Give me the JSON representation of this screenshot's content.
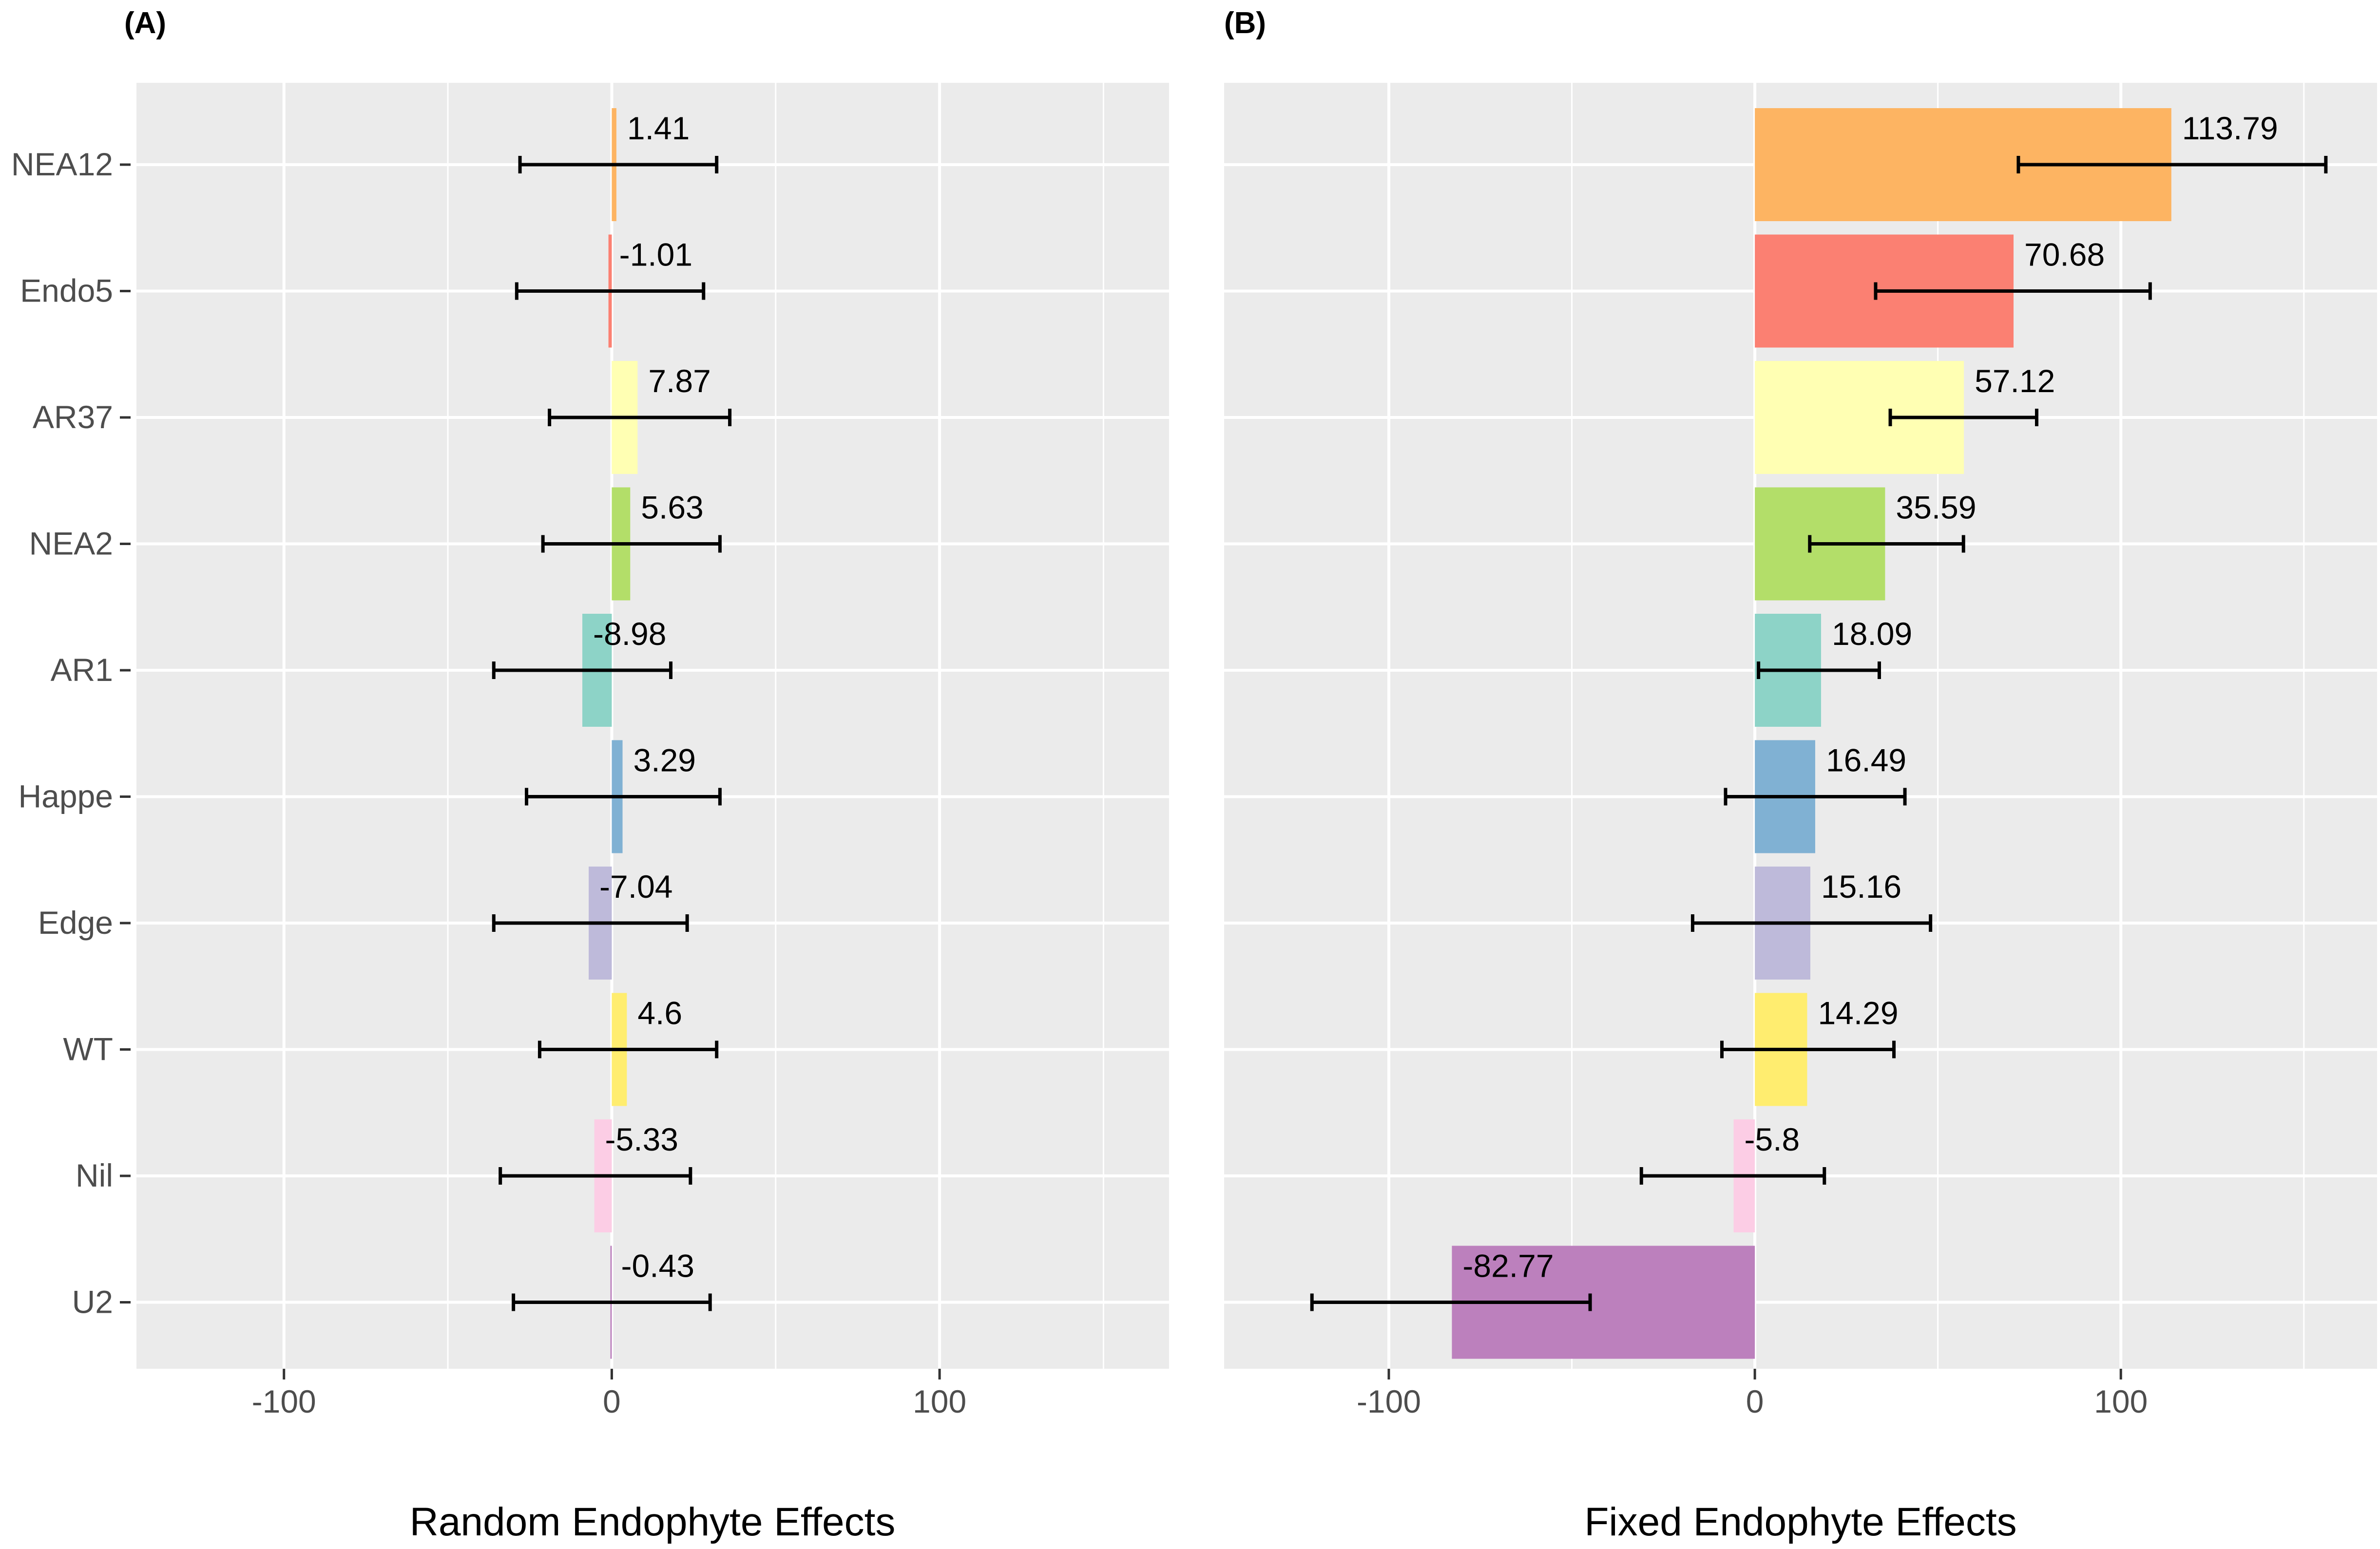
{
  "chart_data": [
    {
      "type": "bar",
      "orientation": "horizontal",
      "panel_label": "(A)",
      "xlabel": "Random Endophyte Effects",
      "xlim": [
        -145,
        170
      ],
      "xticks": [
        -100,
        0,
        100
      ],
      "xtick_labels": [
        "-100",
        "0",
        "100"
      ],
      "grid": true,
      "categories": [
        "NEA12",
        "Endo5",
        "AR37",
        "NEA2",
        "AR1",
        "Happe",
        "Edge",
        "WT",
        "Nil",
        "U2"
      ],
      "values": [
        1.41,
        -1.01,
        7.87,
        5.63,
        -8.98,
        3.29,
        -7.04,
        4.6,
        -5.33,
        -0.43
      ],
      "value_labels": [
        "1.41",
        "-1.01",
        "7.87",
        "5.63",
        "-8.98",
        "3.29",
        "-7.04",
        "4.6",
        "-5.33",
        "-0.43"
      ],
      "error_low": [
        -28,
        -29,
        -19,
        -21,
        -36,
        -26,
        -36,
        -22,
        -34,
        -30
      ],
      "error_high": [
        32,
        28,
        36,
        33,
        18,
        33,
        23,
        32,
        24,
        30
      ],
      "colors": [
        "#FDB462",
        "#FB8072",
        "#FFFFB3",
        "#B3DE69",
        "#8DD3C7",
        "#80B1D3",
        "#BEBADA",
        "#FFED6F",
        "#FCCDE5",
        "#BC80BD"
      ]
    },
    {
      "type": "bar",
      "orientation": "horizontal",
      "panel_label": "(B)",
      "xlabel": "Fixed Endophyte Effects",
      "xlim": [
        -145,
        170
      ],
      "xticks": [
        -100,
        0,
        100
      ],
      "xtick_labels": [
        "-100",
        "0",
        "100"
      ],
      "grid": true,
      "categories": [
        "NEA12",
        "Endo5",
        "AR37",
        "NEA2",
        "AR1",
        "Happe",
        "Edge",
        "WT",
        "Nil",
        "U2"
      ],
      "values": [
        113.79,
        70.68,
        57.12,
        35.59,
        18.09,
        16.49,
        15.16,
        14.29,
        -5.8,
        -82.77
      ],
      "value_labels": [
        "113.79",
        "70.68",
        "57.12",
        "35.59",
        "18.09",
        "16.49",
        "15.16",
        "14.29",
        "-5.8",
        "-82.77"
      ],
      "error_low": [
        72,
        33,
        37,
        15,
        1,
        -8,
        -17,
        -9,
        -31,
        -121
      ],
      "error_high": [
        156,
        108,
        77,
        57,
        34,
        41,
        48,
        38,
        19,
        -45
      ],
      "colors": [
        "#FDB462",
        "#FB8072",
        "#FFFFB3",
        "#B3DE69",
        "#8DD3C7",
        "#80B1D3",
        "#BEBADA",
        "#FFED6F",
        "#FCCDE5",
        "#BC80BD"
      ]
    }
  ]
}
